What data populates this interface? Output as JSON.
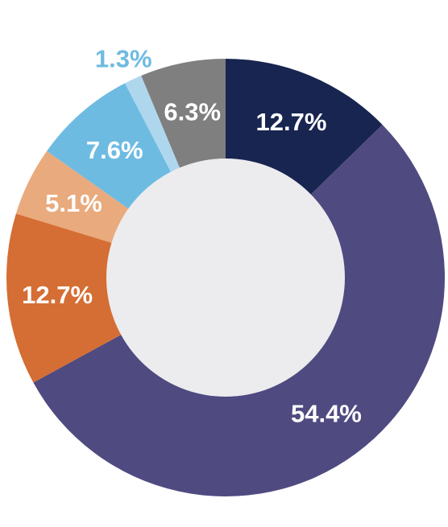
{
  "chart_data": {
    "type": "pie",
    "variant": "donut",
    "title": "",
    "series": [
      {
        "value": 12.7,
        "label": "12.7%",
        "color": "#182550",
        "label_color": "#ffffff"
      },
      {
        "value": 54.4,
        "label": "54.4%",
        "color": "#4f4a80",
        "label_color": "#ffffff"
      },
      {
        "value": 12.7,
        "label": "12.7%",
        "color": "#d56e34",
        "label_color": "#ffffff"
      },
      {
        "value": 5.1,
        "label": "5.1%",
        "color": "#e9aa7d",
        "label_color": "#ffffff"
      },
      {
        "value": 7.6,
        "label": "7.6%",
        "color": "#6ebbe2",
        "label_color": "#ffffff"
      },
      {
        "value": 1.3,
        "label": "1.3%",
        "color": "#aed7ee",
        "label_color": "#6ebbe2",
        "label_outside": true
      },
      {
        "value": 6.3,
        "label": "6.3%",
        "color": "#7f7f7f",
        "label_color": "#ffffff"
      }
    ],
    "center_color": "#ececef",
    "legend": "none"
  }
}
